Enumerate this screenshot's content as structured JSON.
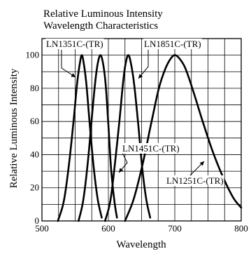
{
  "chart_data": {
    "type": "line",
    "title": "Relative Luminous Intensity",
    "subtitle": "Wavelength Characteristics",
    "xlabel": "Wavelength",
    "ylabel": "Relative Luminous Intensity",
    "xlim": [
      500,
      800
    ],
    "ylim": [
      0,
      110
    ],
    "x_ticks": [
      500,
      600,
      700,
      800
    ],
    "y_ticks": [
      0,
      20,
      40,
      60,
      80,
      100
    ],
    "grid": true,
    "series": [
      {
        "name": "LN1351C-(TR)",
        "x": [
          524,
          533,
          541,
          548,
          553,
          557,
          560,
          563,
          567,
          572,
          578,
          584,
          590
        ],
        "y": [
          0,
          12,
          35,
          62,
          83,
          95,
          100,
          95,
          82,
          58,
          32,
          13,
          2
        ]
      },
      {
        "name": "LN1451C-(TR)",
        "x": [
          555,
          562,
          569,
          575,
          580,
          584,
          588,
          592,
          596,
          600,
          604,
          609,
          613
        ],
        "y": [
          0,
          12,
          35,
          62,
          83,
          95,
          100,
          95,
          82,
          58,
          32,
          12,
          2
        ]
      },
      {
        "name": "LN1851C-(TR)",
        "x": [
          595,
          603,
          610,
          617,
          622,
          626,
          630,
          634,
          639,
          645,
          651,
          657,
          663
        ],
        "y": [
          0,
          12,
          35,
          62,
          83,
          95,
          100,
          95,
          82,
          58,
          32,
          13,
          2
        ]
      },
      {
        "name": "LN1251C-(TR)",
        "x": [
          625,
          638,
          652,
          665,
          676,
          686,
          694,
          700,
          707,
          716,
          728,
          742,
          757,
          772,
          788,
          800
        ],
        "y": [
          0,
          13,
          35,
          60,
          80,
          92,
          98,
          100,
          98,
          92,
          78,
          60,
          42,
          27,
          14,
          8
        ]
      }
    ],
    "annotations": [
      {
        "series": 0,
        "label": "LN1351C-(TR)"
      },
      {
        "series": 2,
        "label": "LN1851C-(TR)"
      },
      {
        "series": 1,
        "label": "LN1451C-(TR)"
      },
      {
        "series": 3,
        "label": "LN1251C-(TR)"
      }
    ]
  }
}
